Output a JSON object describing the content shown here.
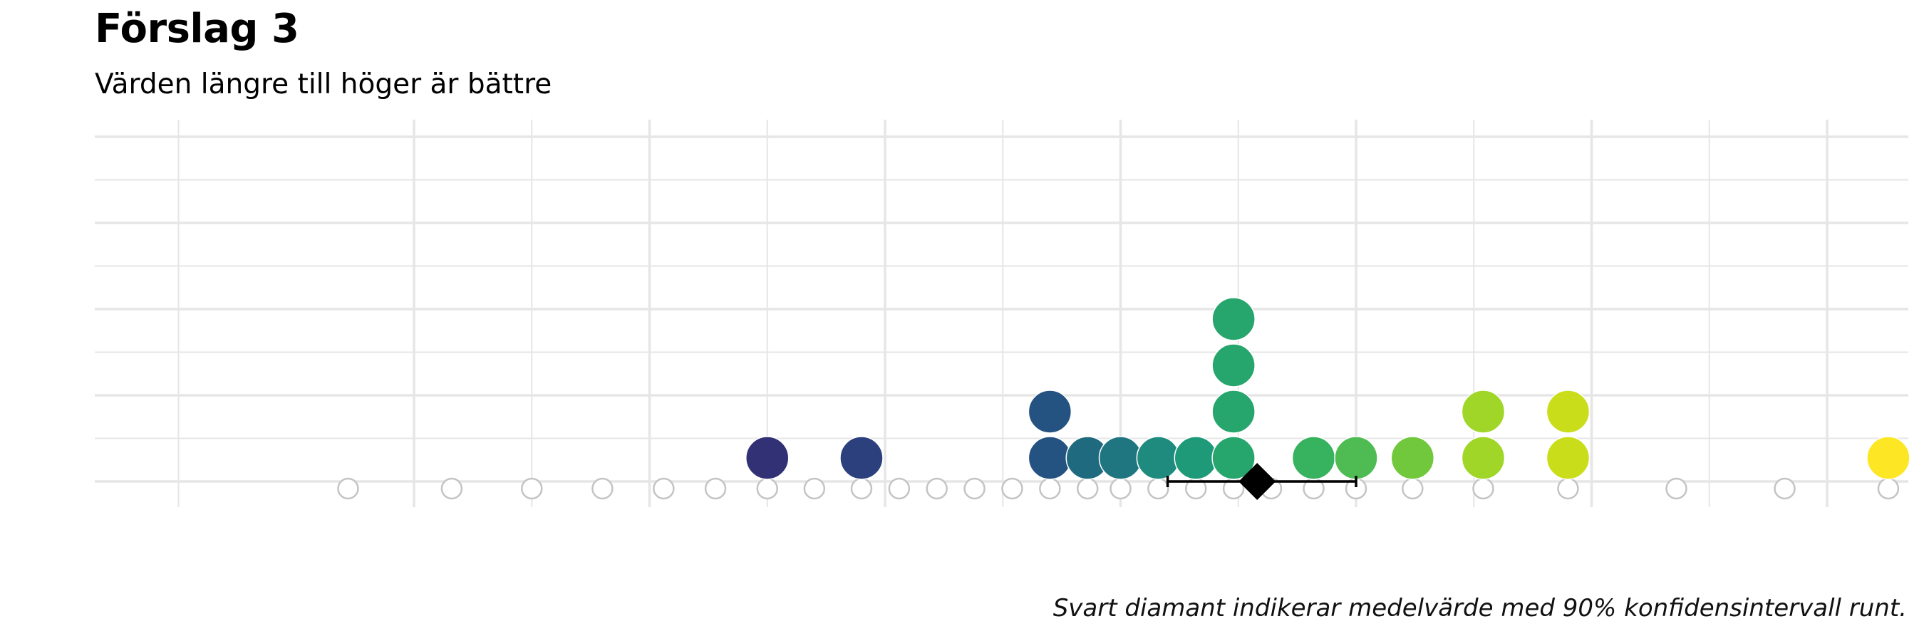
{
  "title": "Förslag 3",
  "subtitle": "Värden längre till höger är bättre",
  "caption": "Svart diamant indikerar medelvärde med 90% konfidensintervall runt.",
  "chart_data": {
    "type": "dotplot",
    "title": "Förslag 3",
    "subtitle": "Värden längre till höger är bättre",
    "xlim": [
      -0.4,
      3.8
    ],
    "ylim": [
      0,
      8
    ],
    "x_major_ticks": [
      0.5,
      1,
      1.5,
      2,
      2.5,
      3,
      3.5
    ],
    "x_minor_ticks": [
      0,
      0.75,
      1.25,
      1.75,
      2.25,
      2.75,
      3.25,
      3.75
    ],
    "y_gridlines": [
      0,
      1,
      2,
      3,
      4,
      5,
      6,
      7,
      8
    ],
    "grid": true,
    "tick_labels_shown": false,
    "possible_values": [
      0.36,
      0.58,
      0.75,
      0.9,
      1.03,
      1.14,
      1.25,
      1.35,
      1.45,
      1.53,
      1.61,
      1.69,
      1.77,
      1.85,
      1.93,
      2.0,
      2.08,
      2.16,
      2.24,
      2.32,
      2.41,
      2.5,
      2.62,
      2.77,
      2.95,
      3.18,
      3.41,
      3.63
    ],
    "points": [
      {
        "x": 1.25,
        "count": 1,
        "color": "#323176"
      },
      {
        "x": 1.45,
        "count": 1,
        "color": "#2b407c"
      },
      {
        "x": 1.85,
        "count": 2,
        "color": "#255381"
      },
      {
        "x": 1.93,
        "count": 1,
        "color": "#206a7f"
      },
      {
        "x": 2.0,
        "count": 1,
        "color": "#1f7681"
      },
      {
        "x": 2.08,
        "count": 1,
        "color": "#1f8b7e"
      },
      {
        "x": 2.16,
        "count": 1,
        "color": "#1f9a79"
      },
      {
        "x": 2.24,
        "count": 4,
        "color": "#26a56d"
      },
      {
        "x": 2.41,
        "count": 1,
        "color": "#37b25f"
      },
      {
        "x": 2.5,
        "count": 1,
        "color": "#4ebc53"
      },
      {
        "x": 2.62,
        "count": 1,
        "color": "#72c83d"
      },
      {
        "x": 2.77,
        "count": 2,
        "color": "#9fd627"
      },
      {
        "x": 2.95,
        "count": 2,
        "color": "#c9dd1a"
      },
      {
        "x": 3.63,
        "count": 1,
        "color": "#fde725"
      }
    ],
    "mean": 2.29,
    "ci90": [
      2.1,
      2.5
    ],
    "colors": {
      "grid": "#e6e6e6",
      "open_marker": "#c4c4c4",
      "mean_marker": "#000000"
    }
  }
}
